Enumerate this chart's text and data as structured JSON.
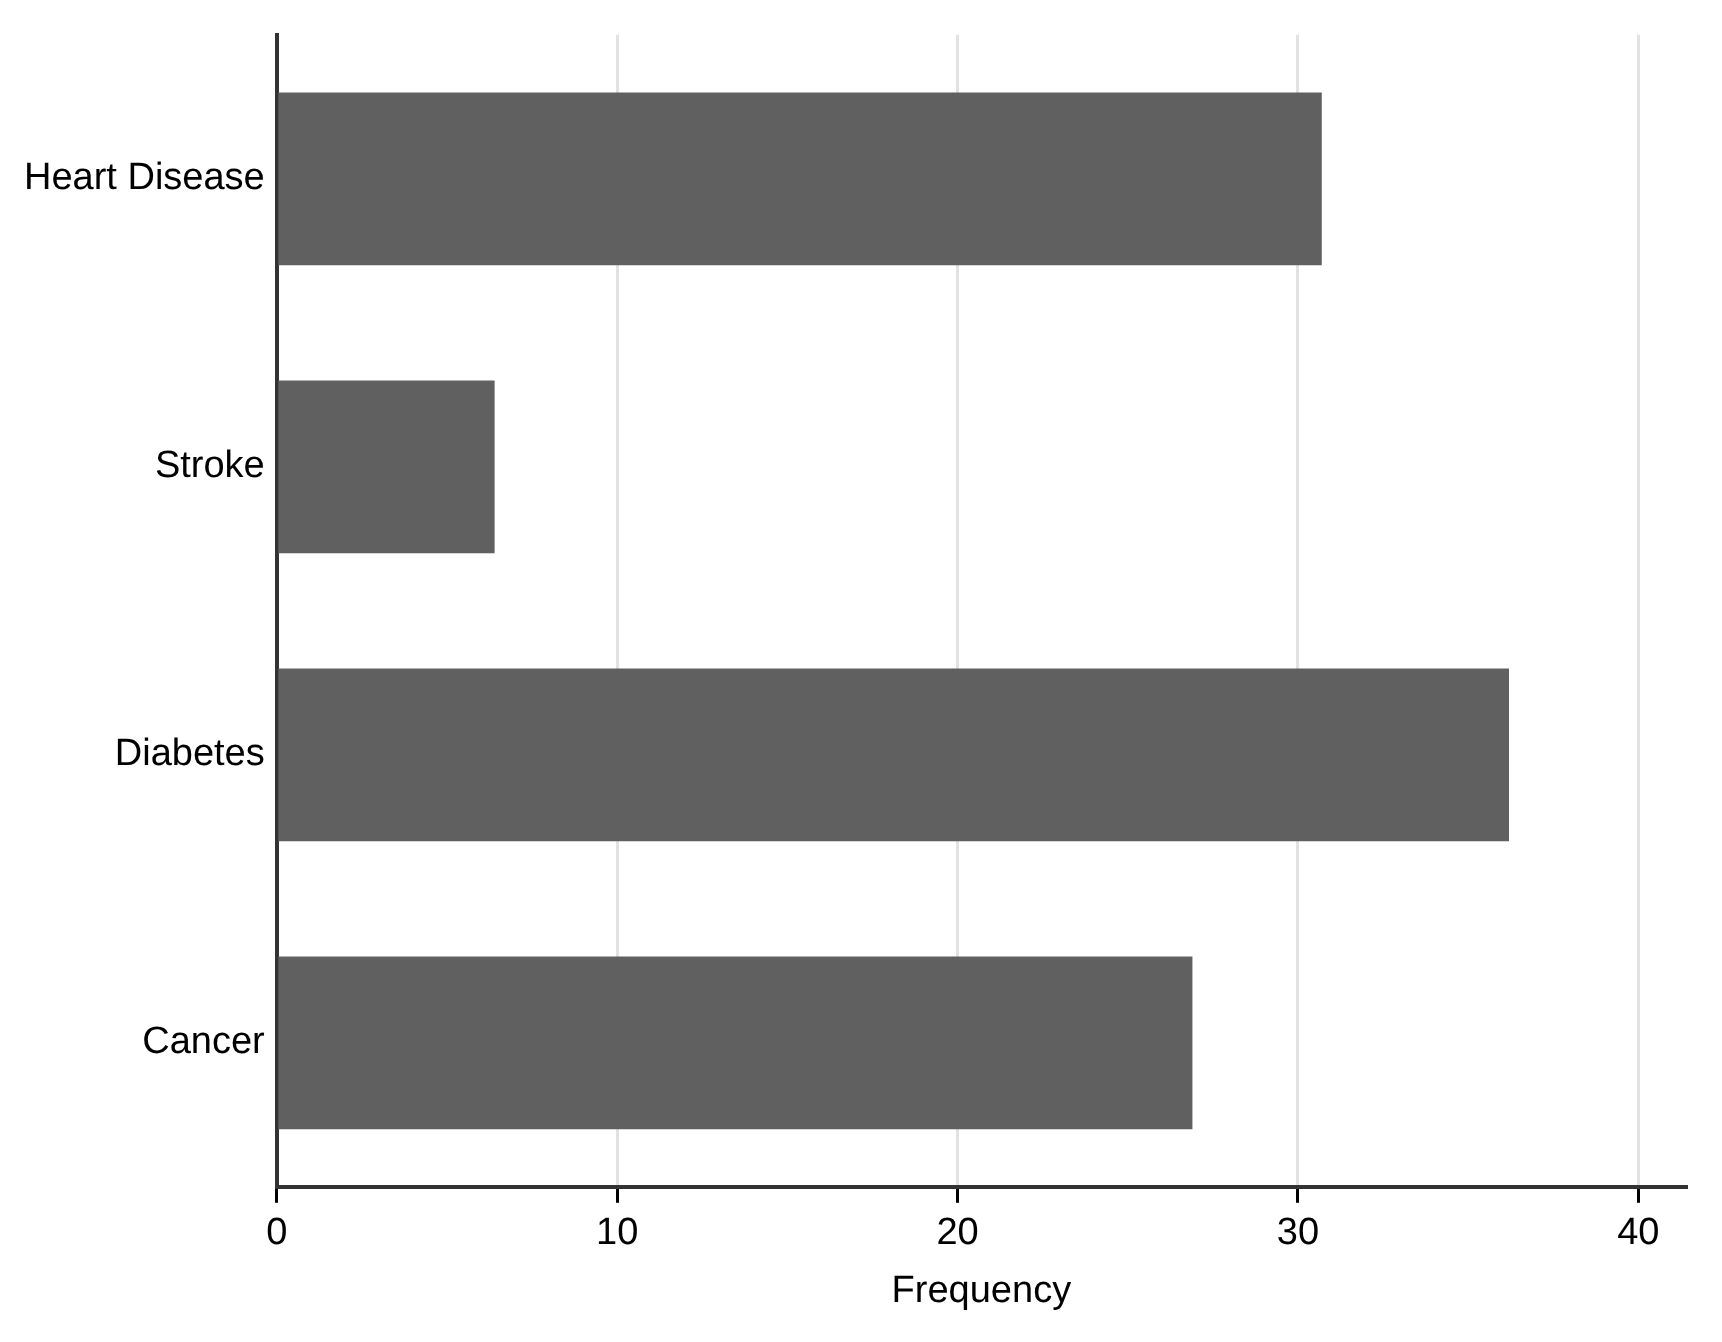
{
  "chart_data": {
    "type": "bar",
    "orientation": "horizontal",
    "categories": [
      "Heart Disease",
      "Stroke",
      "Diabetes",
      "Cancer"
    ],
    "values": [
      30.7,
      6.4,
      36.2,
      26.9
    ],
    "color": "#606060",
    "xlabel": "Frequency",
    "xlim": [
      0,
      41.4
    ],
    "xticks": [
      0,
      10,
      20,
      30,
      40
    ],
    "grid": "x",
    "legend": false
  }
}
